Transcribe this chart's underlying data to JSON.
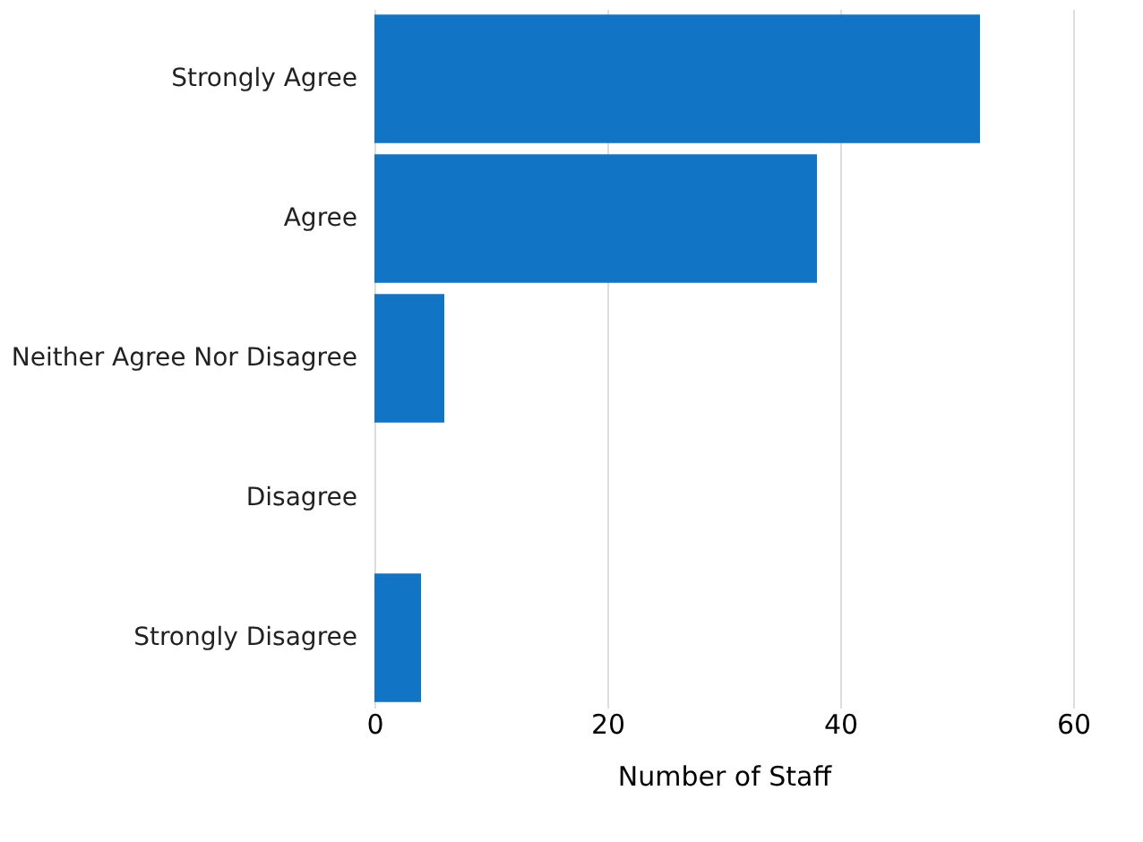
{
  "chart_data": {
    "type": "bar",
    "orientation": "horizontal",
    "xlabel": "Number of Staff",
    "categories": [
      "Strongly Agree",
      "Agree",
      "Neither Agree Nor Disagree",
      "Disagree",
      "Strongly Disagree"
    ],
    "values": [
      52,
      38,
      6,
      0,
      4
    ],
    "color": "#1174c4",
    "xlim": [
      0,
      60
    ],
    "xticks": [
      0,
      20,
      40,
      60
    ],
    "grid": "x"
  }
}
